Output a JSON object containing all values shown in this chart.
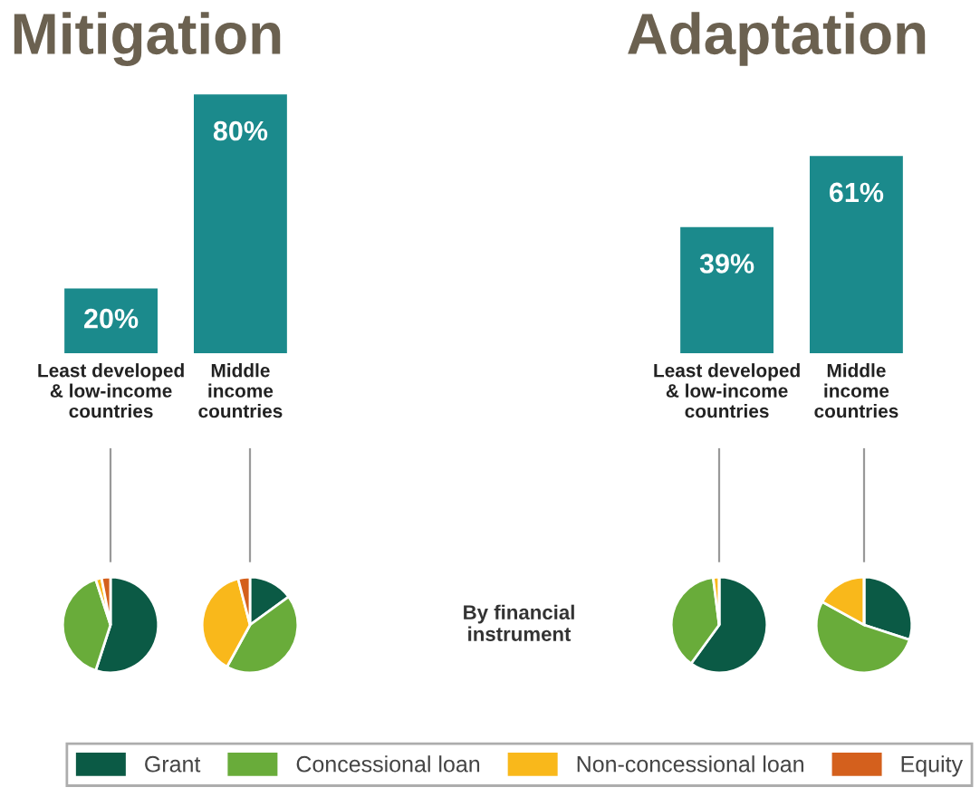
{
  "chart_data": [
    {
      "type": "bar",
      "title": "Mitigation",
      "categories": [
        "Least developed\n& low-income\ncountries",
        "Middle\nincome\ncountries"
      ],
      "values": [
        20,
        80
      ],
      "value_labels": [
        "20%",
        "80%"
      ],
      "color": "#1b8a8c"
    },
    {
      "type": "bar",
      "title": "Adaptation",
      "categories": [
        "Least developed\n& low-income\ncountries",
        "Middle\nincome\ncountries"
      ],
      "values": [
        39,
        61
      ],
      "value_labels": [
        "39%",
        "61%"
      ],
      "color": "#1b8a8c"
    },
    {
      "type": "pie",
      "categories": [
        "Grant",
        "Concessional loan",
        "Non-concessional loan",
        "Equity"
      ],
      "values": [
        55,
        40,
        2,
        3
      ],
      "colors": [
        "#0b5a45",
        "#69ac3a",
        "#f9b81b",
        "#d4601d"
      ],
      "legend": "bottom"
    },
    {
      "type": "pie",
      "categories": [
        null,
        null,
        null,
        null
      ],
      "values": [
        15,
        43,
        38,
        4
      ],
      "colors": [
        "#0b5a45",
        "#69ac3a",
        "#f9b81b",
        "#d4601d"
      ],
      "annotations": [
        "By financial\ninstrument"
      ]
    },
    {
      "type": "pie",
      "categories": [
        null,
        null,
        null,
        null
      ],
      "values": [
        60,
        38,
        2,
        0
      ],
      "colors": [
        "#0b5a45",
        "#69ac3a",
        "#f9b81b",
        "#d4601d"
      ]
    },
    {
      "type": "pie",
      "categories": [
        null,
        null,
        null,
        null
      ],
      "values": [
        30,
        53,
        17,
        0
      ],
      "colors": [
        "#0b5a45",
        "#69ac3a",
        "#f9b81b",
        "#d4601d"
      ]
    }
  ]
}
